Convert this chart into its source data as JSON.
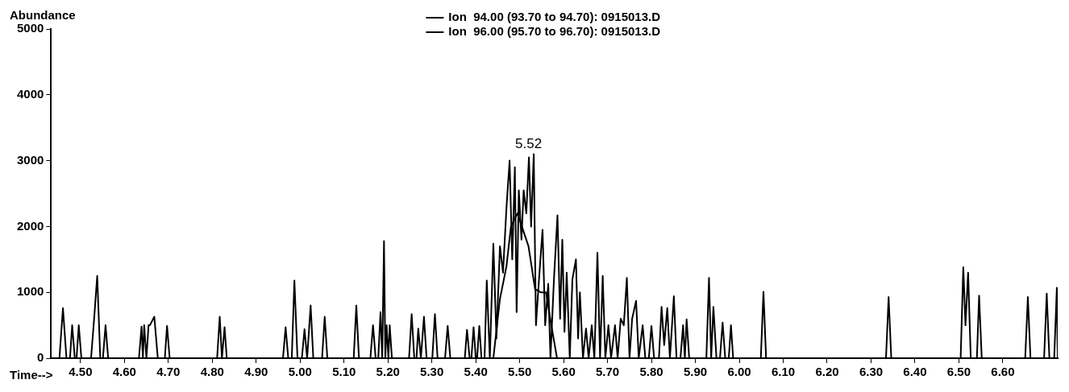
{
  "chart_data": {
    "type": "line",
    "xlabel": "Time-->",
    "ylabel": "Abundance",
    "legend": "top",
    "marker": "none",
    "grid": false,
    "xlim": [
      4.433,
      6.725
    ],
    "ylim": [
      0,
      5000
    ],
    "xticks": [
      {
        "value": 4.5,
        "label": "4.50"
      },
      {
        "value": 4.6,
        "label": "4.60"
      },
      {
        "value": 4.7,
        "label": "4.70"
      },
      {
        "value": 4.8,
        "label": "4.80"
      },
      {
        "value": 4.9,
        "label": "4.90"
      },
      {
        "value": 5.0,
        "label": "5.00"
      },
      {
        "value": 5.1,
        "label": "5.10"
      },
      {
        "value": 5.2,
        "label": "5.20"
      },
      {
        "value": 5.3,
        "label": "5.30"
      },
      {
        "value": 5.4,
        "label": "5.40"
      },
      {
        "value": 5.5,
        "label": "5.50"
      },
      {
        "value": 5.6,
        "label": "5.60"
      },
      {
        "value": 5.7,
        "label": "5.70"
      },
      {
        "value": 5.8,
        "label": "5.80"
      },
      {
        "value": 5.9,
        "label": "5.90"
      },
      {
        "value": 6.0,
        "label": "6.00"
      },
      {
        "value": 6.1,
        "label": "6.10"
      },
      {
        "value": 6.2,
        "label": "6.20"
      },
      {
        "value": 6.3,
        "label": "6.30"
      },
      {
        "value": 6.4,
        "label": "6.40"
      },
      {
        "value": 6.5,
        "label": "6.50"
      },
      {
        "value": 6.6,
        "label": "6.60"
      }
    ],
    "yticks": [
      0,
      1000,
      2000,
      3000,
      4000,
      5000
    ],
    "annotations": [
      {
        "text": "5.52",
        "x": 5.52,
        "y": 3100
      }
    ],
    "series": [
      {
        "name": "Ion  94.00 (93.70 to 94.70): 0915013.D",
        "color": "#000000",
        "x": [
          4.433,
          4.452,
          4.46,
          4.468,
          4.476,
          4.481,
          4.487,
          4.491,
          4.496,
          4.502,
          4.524,
          4.531,
          4.538,
          4.545,
          4.551,
          4.557,
          4.563,
          4.633,
          4.639,
          4.642,
          4.645,
          4.65,
          4.655,
          4.658,
          4.668,
          4.676,
          4.692,
          4.697,
          4.703,
          4.811,
          4.817,
          4.822,
          4.828,
          4.833,
          4.961,
          4.967,
          4.973,
          4.981,
          4.987,
          4.994,
          5.004,
          5.01,
          5.016,
          5.024,
          5.03,
          5.05,
          5.056,
          5.062,
          5.122,
          5.128,
          5.134,
          5.16,
          5.166,
          5.172,
          5.178,
          5.183,
          5.187,
          5.191,
          5.194,
          5.197,
          5.201,
          5.204,
          5.209,
          5.248,
          5.254,
          5.26,
          5.265,
          5.269,
          5.275,
          5.282,
          5.288,
          5.301,
          5.307,
          5.313,
          5.33,
          5.336,
          5.342,
          5.375,
          5.38,
          5.386,
          5.39,
          5.395,
          5.4,
          5.403,
          5.408,
          5.413,
          5.42,
          5.425,
          5.432,
          5.44,
          5.447,
          5.455,
          5.462,
          5.47,
          5.477,
          5.483,
          5.489,
          5.493,
          5.498,
          5.504,
          5.509,
          5.515,
          5.521,
          5.526,
          5.532,
          5.537,
          5.545,
          5.552,
          5.558,
          5.565,
          5.57,
          5.578,
          5.586,
          5.592,
          5.597,
          5.602,
          5.607,
          5.614,
          5.62,
          5.628,
          5.633,
          5.637,
          5.644,
          5.651,
          5.657,
          5.664,
          5.67,
          5.677,
          5.683,
          5.689,
          5.695,
          5.702,
          5.708,
          5.717,
          5.723,
          5.73,
          5.737,
          5.744,
          5.75,
          5.756,
          5.765,
          5.771,
          5.78,
          5.786,
          5.794,
          5.8,
          5.806,
          5.817,
          5.823,
          5.829,
          5.836,
          5.842,
          5.851,
          5.857,
          5.866,
          5.872,
          5.876,
          5.88,
          5.886,
          5.925,
          5.931,
          5.936,
          5.941,
          5.948,
          5.956,
          5.962,
          5.968,
          5.976,
          5.981,
          5.986,
          6.049,
          6.055,
          6.061,
          6.334,
          6.34,
          6.346,
          6.504,
          6.51,
          6.515,
          6.521,
          6.527,
          6.541,
          6.546,
          6.552,
          6.651,
          6.657,
          6.663,
          6.694,
          6.7,
          6.706,
          6.717,
          6.723,
          6.725
        ],
        "values": [
          0,
          0,
          760,
          0,
          0,
          500,
          0,
          0,
          500,
          0,
          0,
          600,
          1250,
          0,
          0,
          500,
          0,
          0,
          480,
          0,
          500,
          0,
          500,
          500,
          630,
          0,
          0,
          490,
          0,
          0,
          630,
          0,
          470,
          0,
          0,
          470,
          0,
          0,
          1180,
          0,
          0,
          440,
          0,
          800,
          0,
          0,
          630,
          0,
          0,
          800,
          0,
          0,
          500,
          0,
          0,
          700,
          0,
          1780,
          0,
          500,
          0,
          500,
          0,
          0,
          670,
          0,
          0,
          450,
          0,
          630,
          0,
          0,
          670,
          0,
          0,
          490,
          0,
          0,
          430,
          0,
          0,
          470,
          0,
          0,
          490,
          0,
          0,
          1180,
          0,
          1740,
          300,
          1700,
          1300,
          2300,
          3000,
          1500,
          2900,
          700,
          2550,
          1800,
          2550,
          2200,
          3050,
          2000,
          3100,
          500,
          1300,
          1950,
          500,
          1130,
          0,
          1200,
          2170,
          600,
          1800,
          400,
          1300,
          0,
          1200,
          1500,
          300,
          1000,
          0,
          450,
          0,
          500,
          0,
          1600,
          0,
          1250,
          0,
          500,
          0,
          500,
          0,
          600,
          500,
          1220,
          0,
          600,
          870,
          0,
          500,
          0,
          0,
          490,
          0,
          0,
          780,
          200,
          760,
          0,
          940,
          0,
          0,
          500,
          0,
          590,
          0,
          0,
          1220,
          0,
          780,
          0,
          0,
          540,
          0,
          0,
          500,
          0,
          0,
          1010,
          0,
          0,
          930,
          0,
          0,
          1380,
          500,
          1300,
          0,
          0,
          950,
          0,
          0,
          930,
          0,
          0,
          980,
          0,
          0,
          1070,
          0
        ]
      },
      {
        "name": "Ion  96.00 (95.70 to 96.70): 0915013.D",
        "color": "#000000",
        "x": [
          5.44,
          5.455,
          5.47,
          5.48,
          5.495,
          5.51,
          5.52,
          5.535,
          5.548,
          5.56,
          5.572,
          5.585
        ],
        "values": [
          0,
          900,
          1400,
          2000,
          2200,
          1900,
          1700,
          1050,
          1000,
          1000,
          500,
          0
        ]
      }
    ]
  }
}
